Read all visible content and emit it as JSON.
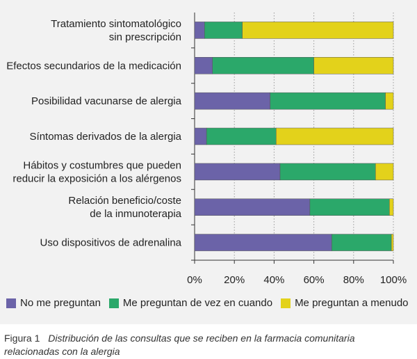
{
  "chart_data": {
    "type": "bar",
    "orientation": "horizontal",
    "stacked": true,
    "categories": [
      [
        "Tratamiento sintomatológico",
        "sin prescripción"
      ],
      [
        "Efectos secundarios de la medicación"
      ],
      [
        "Posibilidad vacunarse de alergia"
      ],
      [
        "Síntomas derivados de la alergia"
      ],
      [
        "Hábitos y costumbres que pueden",
        "reducir la exposición a los alérgenos"
      ],
      [
        "Relación beneficio/coste",
        "de la inmunoterapia"
      ],
      [
        "Uso dispositivos de adrenalina"
      ]
    ],
    "series": [
      {
        "name": "No me preguntan",
        "color": "#6b63a8",
        "values": [
          5,
          9,
          38,
          6,
          43,
          58,
          69
        ]
      },
      {
        "name": "Me preguntan de vez en cuando",
        "color": "#2ba86a",
        "values": [
          19,
          51,
          58,
          35,
          48,
          40,
          30
        ]
      },
      {
        "name": "Me preguntan a menudo",
        "color": "#e3d21b",
        "values": [
          76,
          40,
          4,
          59,
          9,
          2,
          1
        ]
      }
    ],
    "xlim": [
      0,
      100
    ],
    "xticks": [
      "0%",
      "20%",
      "40%",
      "60%",
      "80%",
      "100%"
    ],
    "grid": true,
    "legend": "bottom"
  },
  "caption": {
    "label": "Figura 1",
    "text": "Distribución de las consultas que se reciben en la farmacia comunitaria relacionadas con la alergia"
  }
}
